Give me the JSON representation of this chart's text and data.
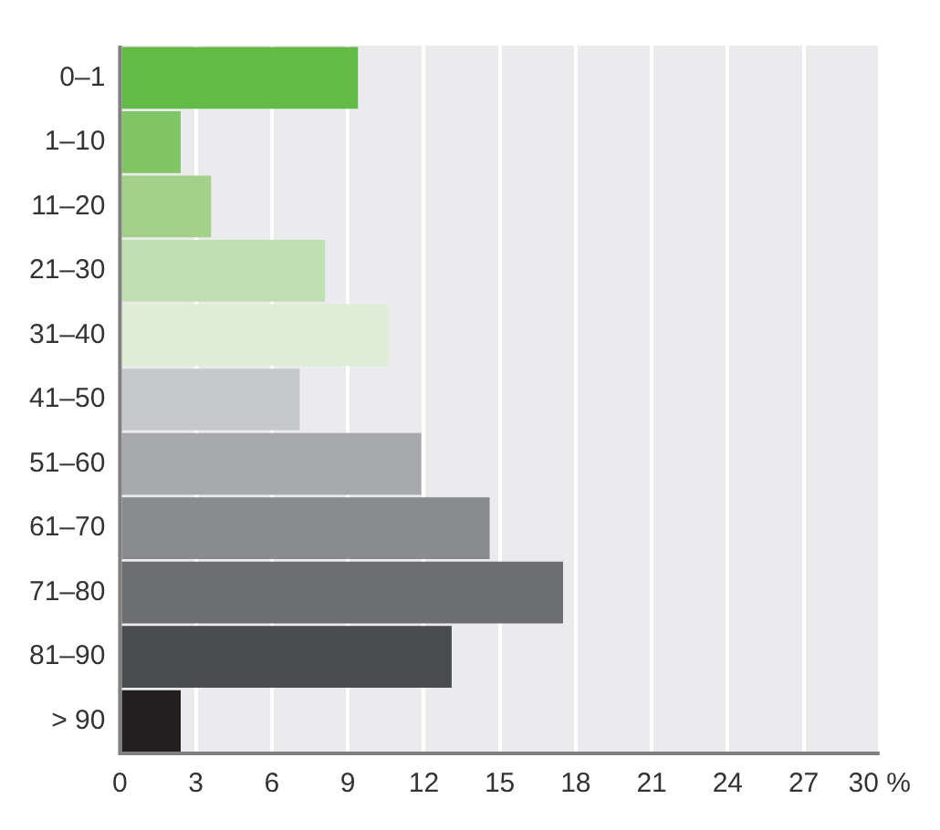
{
  "chart_data": {
    "type": "bar",
    "orientation": "horizontal",
    "categories": [
      "0–1",
      "1–10",
      "11–20",
      "21–30",
      "31–40",
      "41–50",
      "51–60",
      "61–70",
      "71–80",
      "81–90",
      "> 90"
    ],
    "values": [
      9.4,
      2.4,
      3.6,
      8.1,
      10.6,
      7.1,
      11.9,
      14.6,
      17.5,
      13.1,
      2.4
    ],
    "colors": [
      "#62bb46",
      "#80c566",
      "#a3d18a",
      "#c1e0b1",
      "#ddedd6",
      "#c7c8ca",
      "#a8a9ad",
      "#8a8b8e",
      "#6d6e71",
      "#4b4c4e",
      "#231f20"
    ],
    "xlim": [
      0,
      30
    ],
    "xticks": [
      0,
      3,
      6,
      9,
      12,
      15,
      18,
      21,
      24,
      27,
      {
        "value": 30,
        "label": "30 %"
      }
    ],
    "grid": "x",
    "legend": false
  }
}
